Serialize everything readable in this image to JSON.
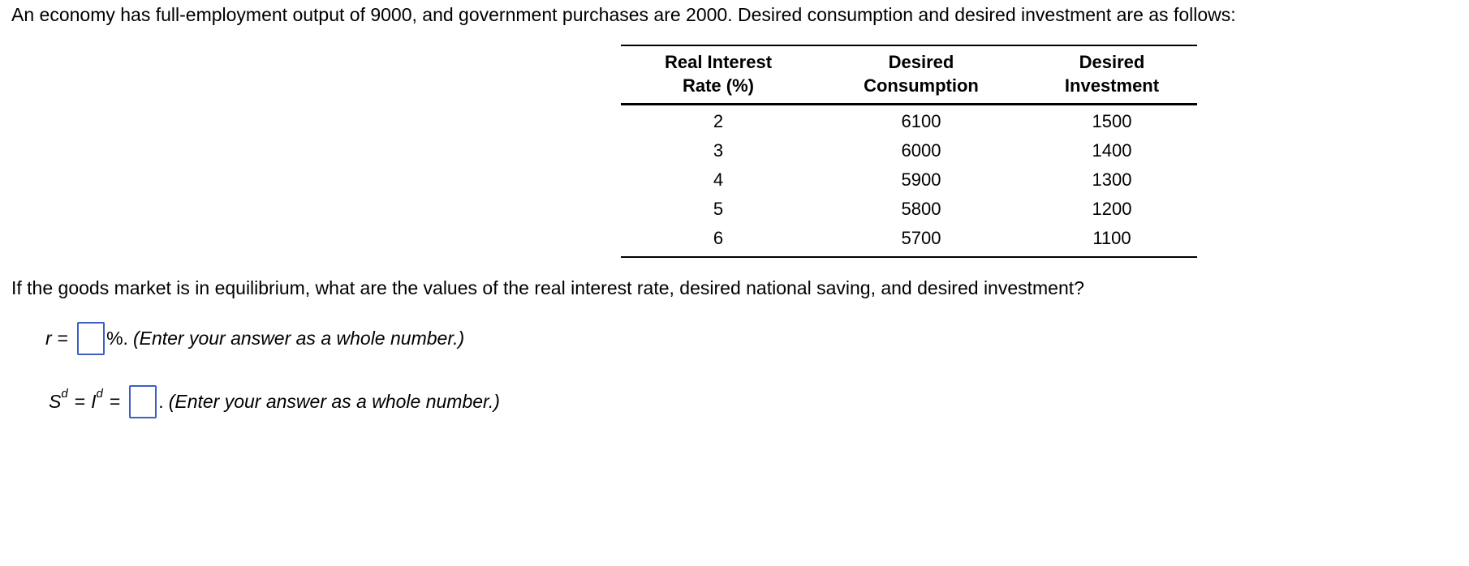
{
  "problem": {
    "intro": "An economy has full-employment output of 9000, and government purchases are 2000. Desired consumption and desired investment are as follows:",
    "question": "If the goods market is in equilibrium, what are the values of the real interest rate, desired national saving, and desired investment?"
  },
  "table": {
    "columns": [
      {
        "line1": "Real Interest",
        "line2": "Rate (%)"
      },
      {
        "line1": "Desired",
        "line2": "Consumption"
      },
      {
        "line1": "Desired",
        "line2": "Investment"
      }
    ],
    "rows": [
      {
        "rate": "2",
        "consumption": "6100",
        "investment": "1500"
      },
      {
        "rate": "3",
        "consumption": "6000",
        "investment": "1400"
      },
      {
        "rate": "4",
        "consumption": "5900",
        "investment": "1300"
      },
      {
        "rate": "5",
        "consumption": "5800",
        "investment": "1200"
      },
      {
        "rate": "6",
        "consumption": "5700",
        "investment": "1100"
      }
    ]
  },
  "answer_r": {
    "variable": "r",
    "equals": "=",
    "value": "",
    "unit": "%.",
    "hint": "(Enter your answer as a whole number.)"
  },
  "answer_s": {
    "s_var": "S",
    "sup": "d",
    "equals": "=",
    "i_var": "I",
    "value": "",
    "period": ".",
    "hint": "(Enter your answer as a whole number.)"
  },
  "colors": {
    "input_border": "#3B5FC5",
    "text": "#000000",
    "background": "#FFFFFF"
  }
}
